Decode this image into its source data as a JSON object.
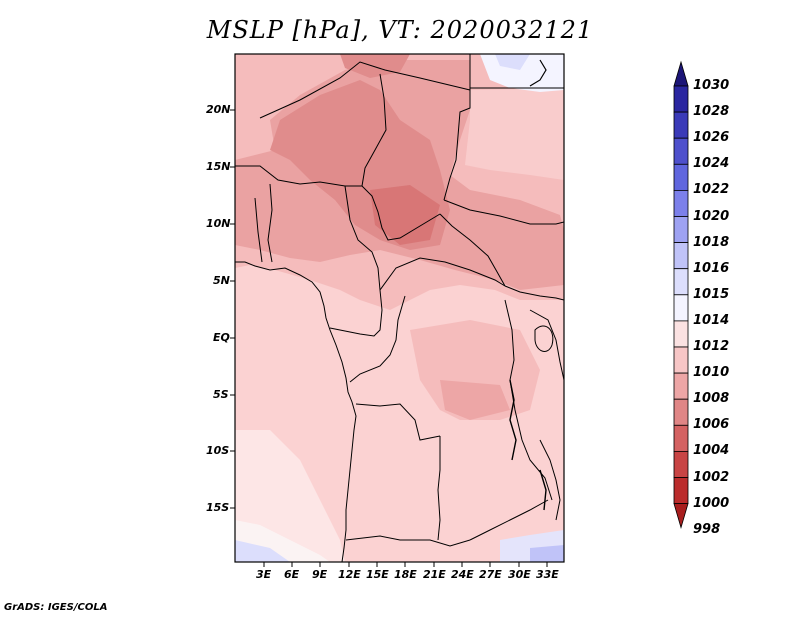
{
  "title": "MSLP [hPa], VT: 2020032121",
  "footer": "GrADS: IGES/COLA",
  "axes": {
    "lon_labels": [
      "3E",
      "6E",
      "9E",
      "12E",
      "15E",
      "18E",
      "21E",
      "24E",
      "27E",
      "30E",
      "33E"
    ],
    "lat_labels": [
      "20N",
      "15N",
      "10N",
      "5N",
      "EQ",
      "5S",
      "10S",
      "15S"
    ],
    "lon_range": [
      0,
      34
    ],
    "lat_range": [
      -20,
      25
    ]
  },
  "colorbar": {
    "levels": [
      "1030",
      "1028",
      "1026",
      "1024",
      "1022",
      "1020",
      "1018",
      "1016",
      "1015",
      "1014",
      "1012",
      "1010",
      "1008",
      "1006",
      "1004",
      "1002",
      "1000",
      "998"
    ],
    "colors": [
      "#1c1577",
      "#2a26a0",
      "#3a3ab8",
      "#4e50cc",
      "#6066de",
      "#7c80ea",
      "#9ea2f2",
      "#c0c3f8",
      "#dcdefc",
      "#f4f4ff",
      "#fbe2e2",
      "#f7c6c6",
      "#eda6a6",
      "#e08686",
      "#d46262",
      "#c84444",
      "#bb2c2c",
      "#a81e1e"
    ]
  },
  "map": {
    "field": "Mean sea level pressure",
    "units": "hPa",
    "valid_time": "2020032121"
  }
}
